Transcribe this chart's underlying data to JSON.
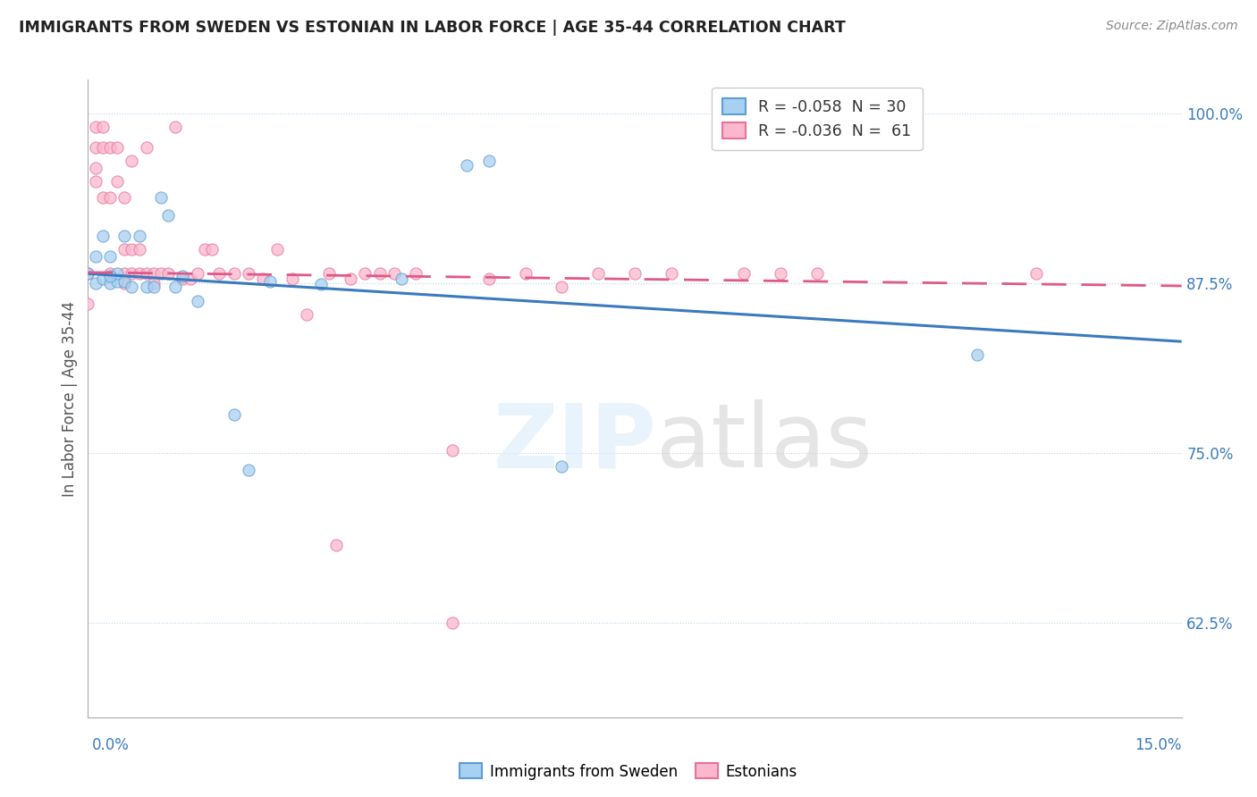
{
  "title": "IMMIGRANTS FROM SWEDEN VS ESTONIAN IN LABOR FORCE | AGE 35-44 CORRELATION CHART",
  "source": "Source: ZipAtlas.com",
  "ylabel": "In Labor Force | Age 35-44",
  "ylim": [
    0.555,
    1.025
  ],
  "xlim": [
    0.0,
    0.15
  ],
  "ytick_vals": [
    0.625,
    0.75,
    0.875,
    1.0
  ],
  "ytick_labels": [
    "62.5%",
    "75.0%",
    "87.5%",
    "100.0%"
  ],
  "legend1_label": "R = -0.058  N = 30",
  "legend2_label": "R = -0.036  N =  61",
  "sweden_color_fill": "#a8d0f0",
  "sweden_color_edge": "#5b9dd4",
  "estonian_color_fill": "#fbb8cc",
  "estonian_color_edge": "#e8709a",
  "line_sweden_color": "#3a7abf",
  "line_estonian_color": "#e05888",
  "sweden_x": [
    0.0,
    0.001,
    0.001,
    0.002,
    0.002,
    0.003,
    0.003,
    0.004,
    0.004,
    0.005,
    0.005,
    0.006,
    0.007,
    0.008,
    0.009,
    0.01,
    0.011,
    0.012,
    0.013,
    0.015,
    0.02,
    0.022,
    0.025,
    0.032,
    0.043,
    0.055,
    0.065,
    0.122,
    0.052,
    0.003
  ],
  "sweden_y": [
    0.882,
    0.895,
    0.875,
    0.91,
    0.878,
    0.895,
    0.875,
    0.876,
    0.882,
    0.876,
    0.91,
    0.872,
    0.91,
    0.872,
    0.872,
    0.938,
    0.925,
    0.872,
    0.88,
    0.862,
    0.778,
    0.737,
    0.876,
    0.874,
    0.878,
    0.965,
    0.74,
    0.822,
    0.962,
    0.88
  ],
  "estonian_x": [
    0.0,
    0.0,
    0.001,
    0.001,
    0.001,
    0.001,
    0.002,
    0.002,
    0.002,
    0.003,
    0.003,
    0.003,
    0.004,
    0.004,
    0.005,
    0.005,
    0.005,
    0.005,
    0.006,
    0.006,
    0.006,
    0.007,
    0.007,
    0.008,
    0.008,
    0.009,
    0.009,
    0.01,
    0.011,
    0.012,
    0.013,
    0.014,
    0.015,
    0.016,
    0.017,
    0.018,
    0.02,
    0.022,
    0.024,
    0.026,
    0.028,
    0.03,
    0.033,
    0.034,
    0.036,
    0.038,
    0.04,
    0.042,
    0.045,
    0.05,
    0.055,
    0.06,
    0.065,
    0.07,
    0.075,
    0.08,
    0.09,
    0.095,
    0.1,
    0.13,
    0.05
  ],
  "estonian_y": [
    0.882,
    0.86,
    0.99,
    0.975,
    0.96,
    0.95,
    0.99,
    0.975,
    0.938,
    0.975,
    0.938,
    0.882,
    0.975,
    0.95,
    0.882,
    0.938,
    0.9,
    0.875,
    0.882,
    0.965,
    0.9,
    0.9,
    0.882,
    0.975,
    0.882,
    0.882,
    0.875,
    0.882,
    0.882,
    0.99,
    0.878,
    0.878,
    0.882,
    0.9,
    0.9,
    0.882,
    0.882,
    0.882,
    0.878,
    0.9,
    0.878,
    0.852,
    0.882,
    0.682,
    0.878,
    0.882,
    0.882,
    0.882,
    0.882,
    0.752,
    0.878,
    0.882,
    0.872,
    0.882,
    0.882,
    0.882,
    0.882,
    0.882,
    0.882,
    0.882,
    0.625
  ]
}
